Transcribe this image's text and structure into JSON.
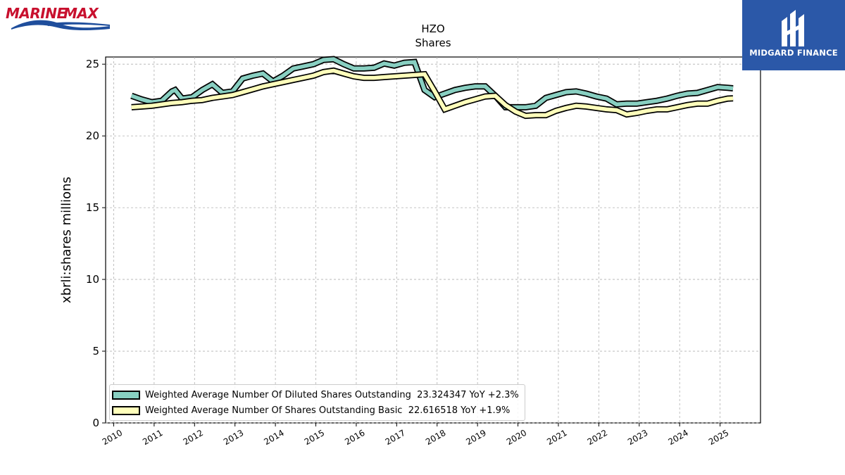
{
  "brand": {
    "name": "MARINEMAX",
    "partner_name": "MIDGARD FINANCE"
  },
  "colors": {
    "diluted": "#88cfc1",
    "basic": "#ffffbb",
    "partner_bg": "#2b58a8",
    "brand_red": "#c8102e",
    "brand_blue": "#1f4e9c"
  },
  "chart_data": {
    "type": "line",
    "title": "HZO",
    "subtitle": "Shares",
    "xlabel": "",
    "ylabel": "xbrli:shares millions",
    "xlim": [
      2009.8,
      2026.0
    ],
    "ylim": [
      0,
      25.5
    ],
    "x_ticks": [
      "2010",
      "2011",
      "2012",
      "2013",
      "2014",
      "2015",
      "2016",
      "2017",
      "2018",
      "2019",
      "2020",
      "2021",
      "2022",
      "2023",
      "2024",
      "2025"
    ],
    "y_ticks": [
      0,
      5,
      10,
      15,
      20,
      25
    ],
    "grid": true,
    "legend_position": "lower-left",
    "series": [
      {
        "name": "Weighted Average Number Of Diluted Shares Outstanding",
        "legend_label": "Weighted Average Number Of Diluted Shares Outstanding  23.324347 YoY +2.3%",
        "color": "#88cfc1",
        "x": [
          2010.44,
          2010.69,
          2010.94,
          2011.19,
          2011.44,
          2011.52,
          2011.69,
          2011.94,
          2012.19,
          2012.44,
          2012.69,
          2012.94,
          2013.19,
          2013.44,
          2013.69,
          2013.94,
          2014.19,
          2014.44,
          2014.69,
          2014.94,
          2015.19,
          2015.44,
          2015.69,
          2015.94,
          2016.19,
          2016.44,
          2016.69,
          2016.94,
          2017.19,
          2017.44,
          2017.69,
          2017.94,
          2018.19,
          2018.44,
          2018.69,
          2018.94,
          2019.19,
          2019.44,
          2019.69,
          2019.94,
          2020.19,
          2020.44,
          2020.69,
          2020.94,
          2021.19,
          2021.44,
          2021.69,
          2021.94,
          2022.19,
          2022.44,
          2022.69,
          2022.94,
          2023.19,
          2023.44,
          2023.69,
          2023.94,
          2024.19,
          2024.44,
          2024.69,
          2024.94,
          2025.19,
          2025.32
        ],
        "y": [
          22.8,
          22.55,
          22.35,
          22.45,
          23.1,
          23.2,
          22.6,
          22.7,
          23.2,
          23.6,
          23.0,
          23.1,
          24.0,
          24.2,
          24.35,
          23.8,
          24.2,
          24.7,
          24.85,
          25.0,
          25.3,
          25.35,
          25.0,
          24.7,
          24.7,
          24.75,
          25.05,
          24.9,
          25.1,
          25.15,
          23.2,
          22.7,
          22.95,
          23.2,
          23.35,
          23.45,
          23.45,
          22.8,
          22.0,
          22.0,
          22.0,
          22.1,
          22.65,
          22.85,
          23.05,
          23.1,
          22.95,
          22.75,
          22.6,
          22.2,
          22.25,
          22.25,
          22.35,
          22.45,
          22.6,
          22.8,
          22.95,
          23.0,
          23.2,
          23.4,
          23.35,
          23.32
        ]
      },
      {
        "name": "Weighted Average Number Of Shares Outstanding Basic",
        "legend_label": "Weighted Average Number Of Shares Outstanding Basic  22.616518 YoY +1.9%",
        "color": "#ffffbb",
        "x": [
          2010.44,
          2010.69,
          2010.94,
          2011.19,
          2011.44,
          2011.69,
          2011.94,
          2012.19,
          2012.44,
          2012.69,
          2012.94,
          2013.19,
          2013.44,
          2013.69,
          2013.94,
          2014.19,
          2014.44,
          2014.69,
          2014.94,
          2015.19,
          2015.44,
          2015.69,
          2015.94,
          2016.19,
          2016.44,
          2016.69,
          2016.94,
          2017.19,
          2017.44,
          2017.69,
          2017.94,
          2018.19,
          2018.44,
          2018.69,
          2018.94,
          2019.19,
          2019.44,
          2019.69,
          2019.94,
          2020.19,
          2020.44,
          2020.69,
          2020.94,
          2021.19,
          2021.44,
          2021.69,
          2021.94,
          2022.19,
          2022.44,
          2022.69,
          2022.94,
          2023.19,
          2023.44,
          2023.69,
          2023.94,
          2024.19,
          2024.44,
          2024.69,
          2024.94,
          2025.19,
          2025.32
        ],
        "y": [
          22.0,
          22.05,
          22.1,
          22.2,
          22.3,
          22.35,
          22.45,
          22.5,
          22.65,
          22.75,
          22.85,
          23.05,
          23.25,
          23.45,
          23.6,
          23.75,
          23.9,
          24.05,
          24.2,
          24.45,
          24.55,
          24.35,
          24.15,
          24.05,
          24.05,
          24.1,
          24.15,
          24.2,
          24.25,
          24.3,
          23.1,
          21.85,
          22.1,
          22.35,
          22.55,
          22.75,
          22.8,
          22.15,
          21.7,
          21.4,
          21.45,
          21.45,
          21.75,
          21.95,
          22.1,
          22.05,
          21.95,
          21.85,
          21.8,
          21.5,
          21.6,
          21.75,
          21.85,
          21.85,
          22.0,
          22.15,
          22.25,
          22.25,
          22.45,
          22.6,
          22.62
        ]
      }
    ]
  }
}
